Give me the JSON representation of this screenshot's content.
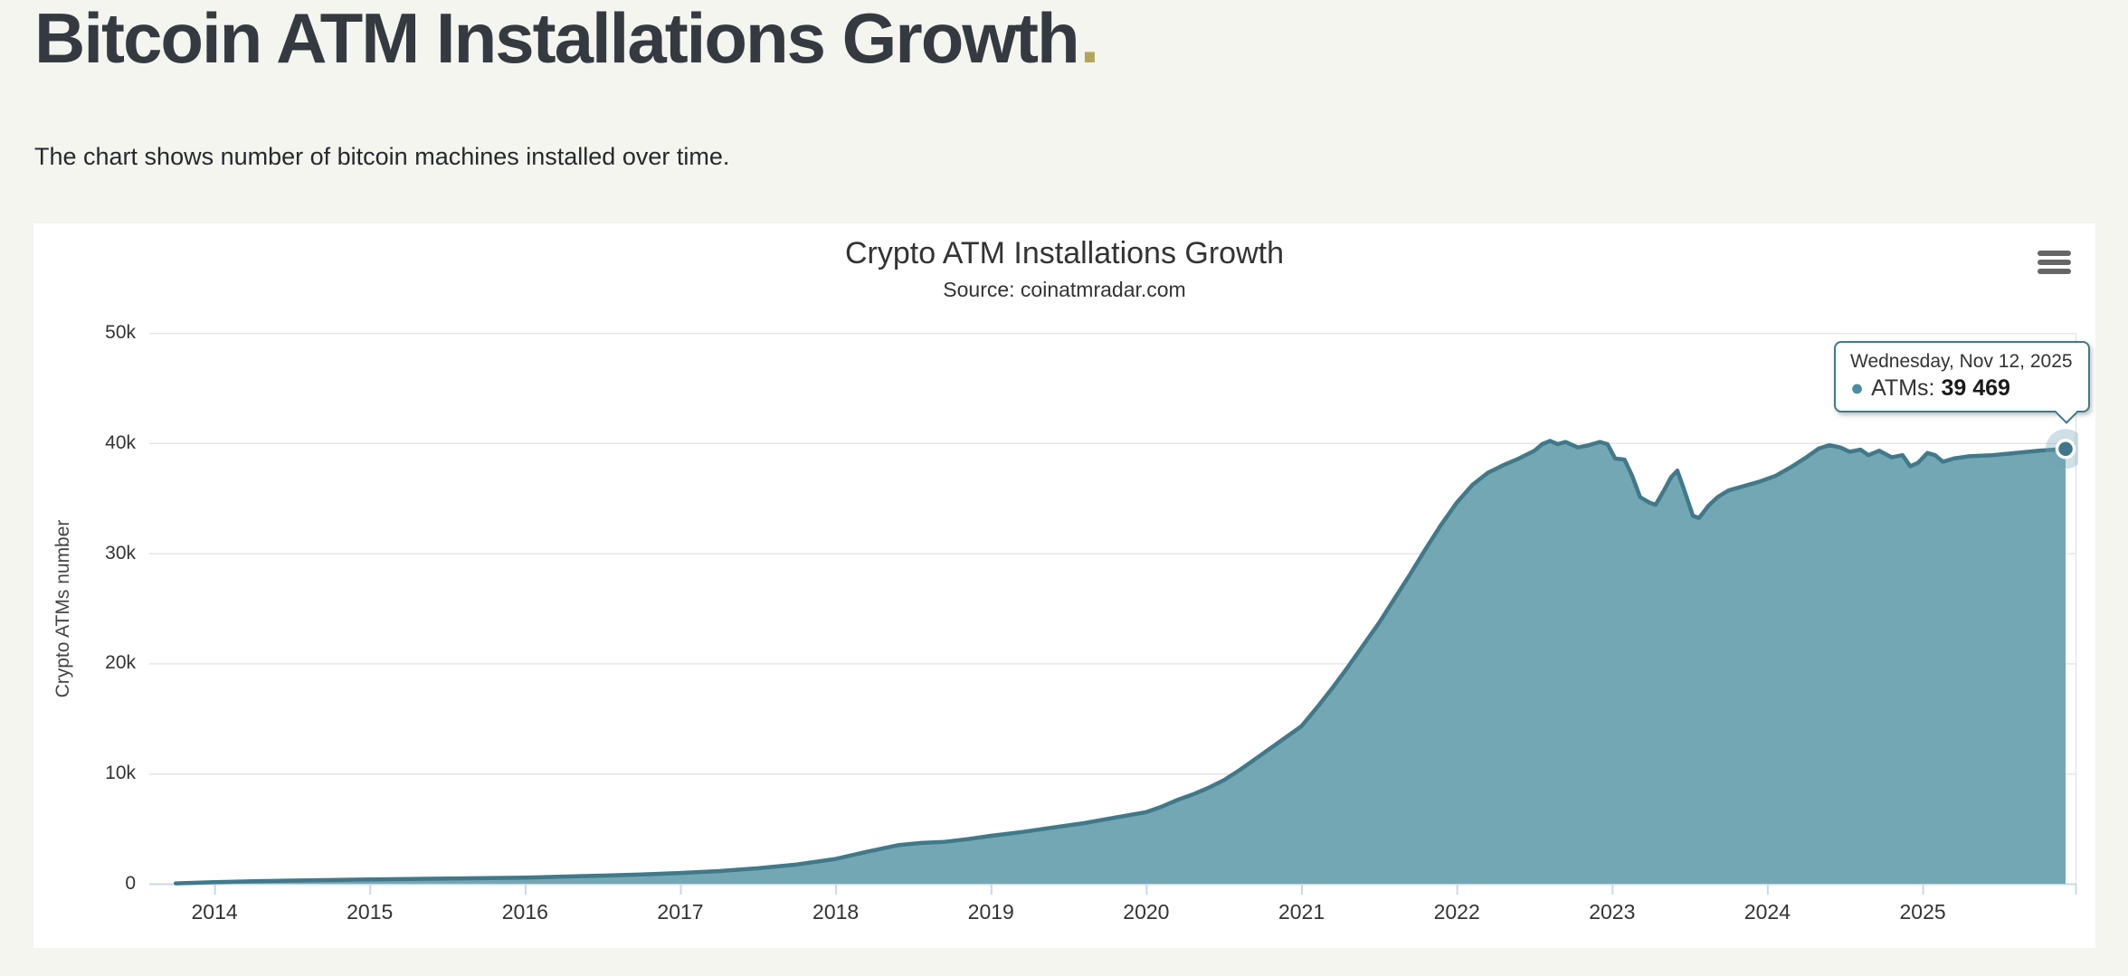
{
  "page": {
    "title": "Bitcoin ATM Installations Growth",
    "title_period": ".",
    "subtitle": "The chart shows number of bitcoin machines installed over time.",
    "background_color": "#f5f5f0",
    "title_color": "#343a40",
    "accent_color": "#b4a55e"
  },
  "icons": {
    "context_menu": "hamburger-menu-icon"
  },
  "chart_data": {
    "type": "area",
    "title": "Crypto ATM Installations Growth",
    "subtitle": "Source: coinatmradar.com",
    "xlabel": "",
    "ylabel": "Crypto ATMs number",
    "legend": "off",
    "grid": "horizontal",
    "xlim": [
      2013.58,
      2025.99
    ],
    "ylim": [
      0,
      50000
    ],
    "x_ticks": [
      2014,
      2015,
      2016,
      2017,
      2018,
      2019,
      2020,
      2021,
      2022,
      2023,
      2024,
      2025
    ],
    "y_ticks": [
      {
        "value": 0,
        "label": "0"
      },
      {
        "value": 10000,
        "label": "10k"
      },
      {
        "value": 20000,
        "label": "20k"
      },
      {
        "value": 30000,
        "label": "30k"
      },
      {
        "value": 40000,
        "label": "40k"
      },
      {
        "value": 50000,
        "label": "50k"
      }
    ],
    "colors": {
      "grid": "#e6e6e6",
      "axis_line": "#ccd6eb",
      "plot_right_border": "#e6e6e6",
      "label": "#333333"
    },
    "series": [
      {
        "name": "ATMs",
        "line_color": "#41798a",
        "fill_color": "#74a7b4",
        "marker_color": "#3d7789",
        "halo_color": "rgba(116,167,180,0.35)",
        "points": [
          [
            2013.75,
            30
          ],
          [
            2014,
            150
          ],
          [
            2014.25,
            220
          ],
          [
            2014.5,
            290
          ],
          [
            2014.75,
            340
          ],
          [
            2015,
            390
          ],
          [
            2015.25,
            430
          ],
          [
            2015.5,
            470
          ],
          [
            2015.75,
            510
          ],
          [
            2016,
            560
          ],
          [
            2016.25,
            650
          ],
          [
            2016.5,
            740
          ],
          [
            2016.75,
            840
          ],
          [
            2017,
            980
          ],
          [
            2017.25,
            1150
          ],
          [
            2017.5,
            1400
          ],
          [
            2017.75,
            1750
          ],
          [
            2018,
            2250
          ],
          [
            2018.2,
            2900
          ],
          [
            2018.4,
            3500
          ],
          [
            2018.55,
            3700
          ],
          [
            2018.7,
            3800
          ],
          [
            2018.85,
            4050
          ],
          [
            2019,
            4350
          ],
          [
            2019.2,
            4700
          ],
          [
            2019.4,
            5100
          ],
          [
            2019.6,
            5500
          ],
          [
            2019.8,
            6000
          ],
          [
            2020,
            6500
          ],
          [
            2020.1,
            7000
          ],
          [
            2020.2,
            7600
          ],
          [
            2020.3,
            8100
          ],
          [
            2020.4,
            8700
          ],
          [
            2020.5,
            9400
          ],
          [
            2020.6,
            10300
          ],
          [
            2020.7,
            11300
          ],
          [
            2020.8,
            12300
          ],
          [
            2020.9,
            13300
          ],
          [
            2021,
            14300
          ],
          [
            2021.1,
            16000
          ],
          [
            2021.2,
            17800
          ],
          [
            2021.3,
            19700
          ],
          [
            2021.4,
            21700
          ],
          [
            2021.5,
            23700
          ],
          [
            2021.6,
            25900
          ],
          [
            2021.7,
            28100
          ],
          [
            2021.8,
            30400
          ],
          [
            2021.9,
            32600
          ],
          [
            2022,
            34600
          ],
          [
            2022.1,
            36200
          ],
          [
            2022.2,
            37300
          ],
          [
            2022.3,
            38000
          ],
          [
            2022.4,
            38600
          ],
          [
            2022.5,
            39300
          ],
          [
            2022.55,
            39900
          ],
          [
            2022.6,
            40200
          ],
          [
            2022.65,
            39900
          ],
          [
            2022.7,
            40100
          ],
          [
            2022.78,
            39600
          ],
          [
            2022.85,
            39800
          ],
          [
            2022.92,
            40100
          ],
          [
            2022.97,
            39900
          ],
          [
            2023.02,
            38600
          ],
          [
            2023.08,
            38500
          ],
          [
            2023.13,
            37000
          ],
          [
            2023.18,
            35100
          ],
          [
            2023.24,
            34600
          ],
          [
            2023.28,
            34400
          ],
          [
            2023.33,
            35600
          ],
          [
            2023.38,
            36900
          ],
          [
            2023.42,
            37500
          ],
          [
            2023.47,
            35500
          ],
          [
            2023.52,
            33400
          ],
          [
            2023.56,
            33200
          ],
          [
            2023.62,
            34300
          ],
          [
            2023.68,
            35100
          ],
          [
            2023.75,
            35700
          ],
          [
            2023.85,
            36100
          ],
          [
            2023.95,
            36500
          ],
          [
            2024.05,
            37000
          ],
          [
            2024.15,
            37800
          ],
          [
            2024.25,
            38700
          ],
          [
            2024.33,
            39500
          ],
          [
            2024.4,
            39800
          ],
          [
            2024.47,
            39600
          ],
          [
            2024.53,
            39200
          ],
          [
            2024.6,
            39400
          ],
          [
            2024.65,
            38900
          ],
          [
            2024.72,
            39300
          ],
          [
            2024.8,
            38700
          ],
          [
            2024.87,
            38900
          ],
          [
            2024.92,
            37900
          ],
          [
            2024.97,
            38200
          ],
          [
            2025.03,
            39100
          ],
          [
            2025.08,
            38900
          ],
          [
            2025.13,
            38300
          ],
          [
            2025.2,
            38600
          ],
          [
            2025.3,
            38800
          ],
          [
            2025.45,
            38900
          ],
          [
            2025.6,
            39100
          ],
          [
            2025.75,
            39300
          ],
          [
            2025.92,
            39469
          ]
        ]
      }
    ],
    "tooltip": {
      "date_line": "Wednesday, Nov 12, 2025",
      "bullet": "●",
      "series_label": "ATMs:",
      "value": "39 469",
      "point": [
        2025.92,
        39469
      ]
    }
  }
}
